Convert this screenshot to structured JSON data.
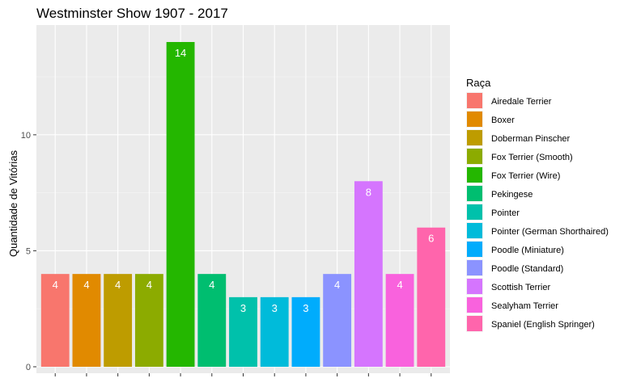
{
  "chart_data": {
    "type": "bar",
    "title": "Westminster Show 1907 - 2017",
    "xlabel": "",
    "ylabel": "Quantidade de Vitórias",
    "ylim": [
      0,
      14
    ],
    "yticks": [
      0,
      5,
      10
    ],
    "grid": true,
    "legend": {
      "title": "Raça",
      "placement": "right"
    },
    "categories": [
      "Airedale Terrier",
      "Boxer",
      "Doberman Pinscher",
      "Fox Terrier (Smooth)",
      "Fox Terrier (Wire)",
      "Pekingese",
      "Pointer",
      "Pointer (German Shorthaired)",
      "Poodle (Miniature)",
      "Poodle (Standard)",
      "Scottish Terrier",
      "Sealyham Terrier",
      "Spaniel (English Springer)"
    ],
    "values": [
      4,
      4,
      4,
      4,
      14,
      4,
      3,
      3,
      3,
      4,
      8,
      4,
      6
    ],
    "colors": [
      "#F8766D",
      "#E18A00",
      "#BE9C00",
      "#8CAB00",
      "#24B700",
      "#00BE70",
      "#00C1AB",
      "#00BBDA",
      "#00ACFC",
      "#8B93FF",
      "#D575FE",
      "#F962DD",
      "#FF65AC"
    ]
  }
}
